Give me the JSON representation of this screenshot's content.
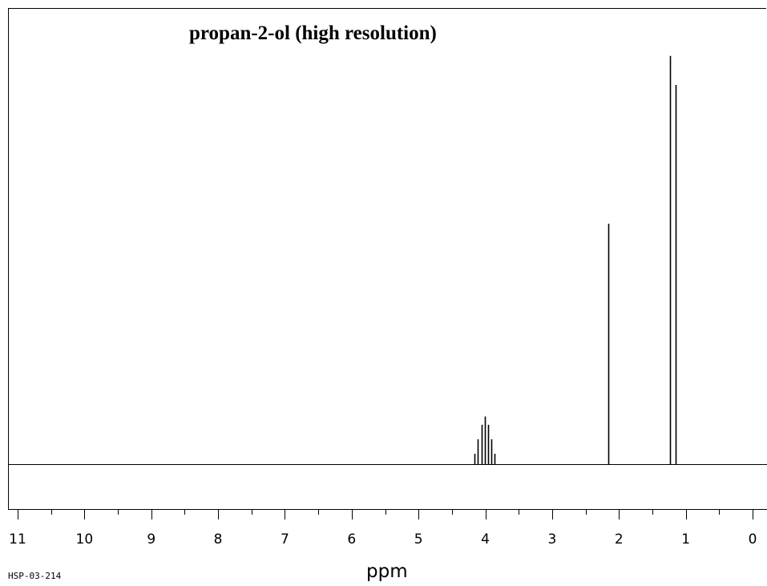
{
  "chart_data": {
    "type": "line",
    "title": "propan-2-ol (high resolution)",
    "xlabel": "ppm",
    "ylabel": "",
    "xlim": [
      11,
      0
    ],
    "x_reversed": true,
    "ylim": [
      0,
      1.0
    ],
    "grid": false,
    "spectrum_code": "HSP-03-214",
    "x_ticks_major": [
      11,
      10,
      9,
      8,
      7,
      6,
      5,
      4,
      3,
      2,
      1,
      0
    ],
    "x_tick_labels": [
      "11",
      "10",
      "9",
      "8",
      "7",
      "6",
      "5",
      "4",
      "3",
      "2",
      "1",
      "0"
    ],
    "x_ticks_minor": [
      10.5,
      9.5,
      8.5,
      7.5,
      6.5,
      5.5,
      4.5,
      3.5,
      2.5,
      1.5,
      0.5
    ],
    "series": [
      {
        "peaks": [
          {
            "x": 4.16,
            "y": 0.025
          },
          {
            "x": 4.11,
            "y": 0.06
          },
          {
            "x": 4.06,
            "y": 0.095
          },
          {
            "x": 4.01,
            "y": 0.115
          },
          {
            "x": 3.96,
            "y": 0.095
          },
          {
            "x": 3.91,
            "y": 0.06
          },
          {
            "x": 3.86,
            "y": 0.025
          },
          {
            "x": 2.16,
            "y": 0.58
          },
          {
            "x": 1.23,
            "y": 0.985
          },
          {
            "x": 1.15,
            "y": 0.915
          }
        ]
      }
    ]
  }
}
